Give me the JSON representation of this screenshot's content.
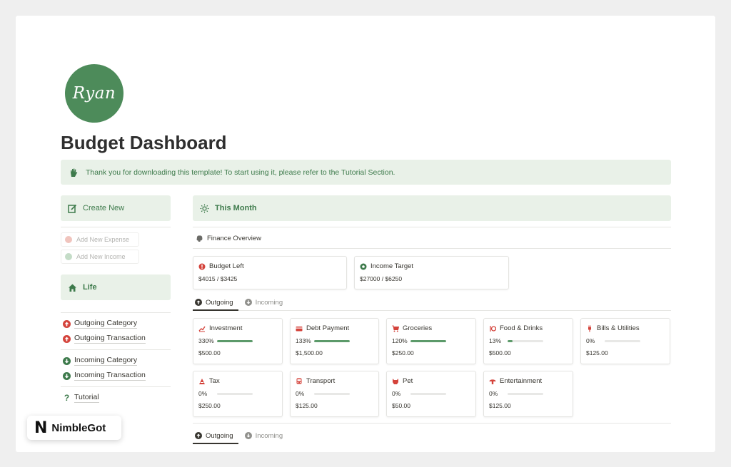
{
  "avatar": {
    "text": "Ryan",
    "color": "#4d8b5a"
  },
  "page": {
    "title": "Budget Dashboard"
  },
  "callout": {
    "icon": "hand-icon",
    "text": "Thank you for downloading this template! To start using it, please refer to the Tutorial Section."
  },
  "sidebar": {
    "create_new": {
      "icon": "edit-icon",
      "label": "Create New"
    },
    "add_expense": {
      "label": "Add New Expense"
    },
    "add_income": {
      "label": "Add New Income"
    },
    "life": {
      "icon": "home-icon",
      "label": "Life"
    },
    "links": [
      {
        "label": "Outgoing Category",
        "icon": "arrow-up-circle-icon"
      },
      {
        "label": "Outgoing Transaction",
        "icon": "arrow-up-circle-icon"
      },
      {
        "label": "Incoming Category",
        "icon": "arrow-down-circle-icon"
      },
      {
        "label": "Incoming Transaction",
        "icon": "arrow-down-circle-icon"
      },
      {
        "label": "Tutorial",
        "icon": "question-icon"
      }
    ]
  },
  "main": {
    "this_month": {
      "icon": "sun-icon",
      "label": "This Month"
    },
    "finance_overview": {
      "icon": "brain-icon",
      "label": "Finance Overview"
    },
    "overview_cards": [
      {
        "icon": "alert-circle-icon",
        "label": "Budget Left",
        "value": "$4015 / $3425"
      },
      {
        "icon": "dollar-circle-icon",
        "label": "Income Target",
        "value": "$27000 / $6250"
      }
    ],
    "tabs_top": [
      {
        "label": "Outgoing",
        "icon": "arrow-up-circle-icon",
        "active": true
      },
      {
        "label": "Incoming",
        "icon": "arrow-down-circle-icon",
        "active": false
      }
    ],
    "tabs_bottom": [
      {
        "label": "Outgoing",
        "icon": "arrow-up-circle-icon",
        "active": true
      },
      {
        "label": "Incoming",
        "icon": "arrow-down-circle-icon",
        "active": false
      }
    ],
    "categories": [
      {
        "icon": "chart-icon",
        "label": "Investment",
        "percent": "330%",
        "progress": 1.0,
        "amount": "$500.00"
      },
      {
        "icon": "card-icon",
        "label": "Debt Payment",
        "percent": "133%",
        "progress": 1.0,
        "amount": "$1,500.00"
      },
      {
        "icon": "cart-icon",
        "label": "Groceries",
        "percent": "120%",
        "progress": 1.0,
        "amount": "$250.00"
      },
      {
        "icon": "fork-knife-icon",
        "label": "Food & Drinks",
        "percent": "13%",
        "progress": 0.13,
        "amount": "$500.00"
      },
      {
        "icon": "plug-icon",
        "label": "Bills & Utilities",
        "percent": "0%",
        "progress": 0,
        "amount": "$125.00"
      },
      {
        "icon": "tax-icon",
        "label": "Tax",
        "percent": "0%",
        "progress": 0,
        "amount": "$250.00"
      },
      {
        "icon": "bus-icon",
        "label": "Transport",
        "percent": "0%",
        "progress": 0,
        "amount": "$125.00"
      },
      {
        "icon": "cat-icon",
        "label": "Pet",
        "percent": "0%",
        "progress": 0,
        "amount": "$50.00"
      },
      {
        "icon": "mushroom-icon",
        "label": "Entertainment",
        "percent": "0%",
        "progress": 0,
        "amount": "$125.00"
      }
    ]
  },
  "brand": {
    "logo": "N",
    "name": "NimbleGot"
  },
  "colors": {
    "accent_green": "#3d7a4b",
    "callout_bg": "#e9f1e8",
    "outgoing_red": "#d4433b",
    "incoming_green": "#3d7a4b",
    "bar_fill": "#5c9a6a"
  }
}
